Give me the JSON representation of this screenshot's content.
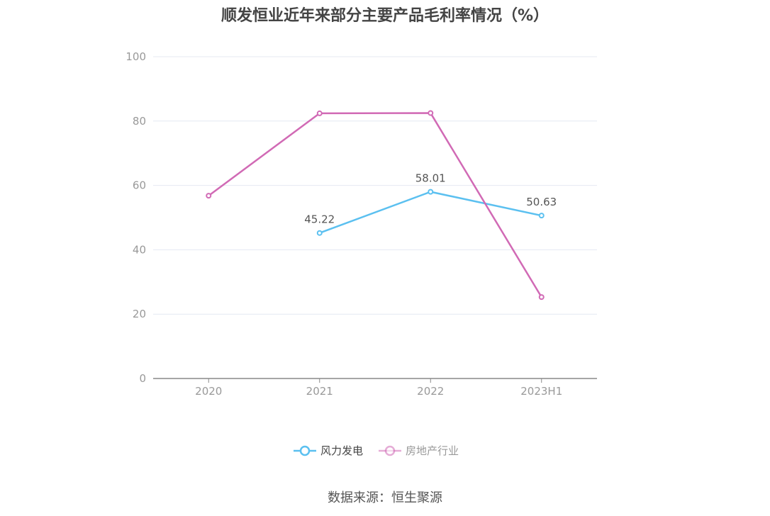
{
  "title": "顺发恒业近年来部分主要产品毛利率情况（%）",
  "source": "数据来源：恒生聚源",
  "chart_data": {
    "type": "line",
    "title": "顺发恒业近年来部分主要产品毛利率情况（%）",
    "categories": [
      "2020",
      "2021",
      "2022",
      "2023H1"
    ],
    "y_ticks": [
      "0",
      "20",
      "40",
      "60",
      "80",
      "100"
    ],
    "ylim": [
      0,
      100
    ],
    "grid": true,
    "legend_position": "bottom",
    "series": [
      {
        "name": "风力发电",
        "color": "#5bc0f0",
        "values": [
          null,
          45.22,
          58.01,
          50.63
        ],
        "labels": [
          "",
          "45.22",
          "58.01",
          "50.63"
        ]
      },
      {
        "name": "房地产行业",
        "color": "#d16ab5",
        "values": [
          56.8,
          82.4,
          82.5,
          25.3
        ],
        "labels": [
          "",
          "",
          "",
          ""
        ]
      }
    ]
  }
}
